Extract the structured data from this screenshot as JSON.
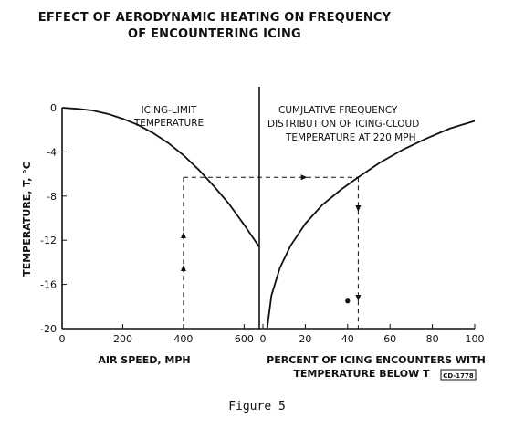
{
  "figure": {
    "title_line1": "EFFECT OF AERODYNAMIC HEATING ON FREQUENCY",
    "title_line2": "OF ENCOUNTERING ICING",
    "caption": "Figure 5",
    "code": "CD-1778"
  },
  "chart_data": [
    {
      "type": "line",
      "panel": "left",
      "annotation": [
        "ICING-LIMIT",
        "TEMPERATURE"
      ],
      "xlabel": "AIR SPEED, MPH",
      "ylabel": "TEMPERATURE, T, °C",
      "xlim": [
        0,
        650
      ],
      "ylim": [
        -20,
        0
      ],
      "xticks": [
        "0",
        "200",
        "400",
        "600"
      ],
      "yticks": [
        "0",
        "-4",
        "-8",
        "-12",
        "-16",
        "-20"
      ],
      "series": [
        {
          "x": [
            0,
            50,
            100,
            150,
            200,
            250,
            300,
            350,
            400,
            450,
            500,
            550,
            600,
            650
          ],
          "y": [
            0.0,
            -0.1,
            -0.25,
            -0.55,
            -1.0,
            -1.55,
            -2.3,
            -3.2,
            -4.3,
            -5.6,
            -7.1,
            -8.7,
            -10.6,
            -12.6
          ]
        }
      ],
      "guides": {
        "x": 400,
        "y": -6.3
      }
    },
    {
      "type": "line",
      "panel": "right",
      "annotation": [
        "CUMJLATIVE FREQUENCY",
        "DISTRIBUTION OF ICING-CLOUD",
        "TEMPERATURE AT 220 MPH"
      ],
      "xlabel": [
        "PERCENT OF ICING ENCOUNTERS WITH",
        "TEMPERATURE BELOW T"
      ],
      "xlim": [
        0,
        100
      ],
      "ylim": [
        -20,
        0
      ],
      "xticks": [
        "0",
        "20",
        "40",
        "60",
        "80",
        "100"
      ],
      "series": [
        {
          "x": [
            2,
            4,
            8,
            13,
            20,
            28,
            37,
            45,
            55,
            66,
            77,
            88,
            100
          ],
          "y": [
            -20.0,
            -17.0,
            -14.5,
            -12.5,
            -10.5,
            -8.8,
            -7.4,
            -6.3,
            -5.0,
            -3.8,
            -2.8,
            -1.9,
            -1.2
          ]
        }
      ],
      "guides": {
        "x": 45,
        "y": -6.3
      },
      "points": [
        {
          "x": 40,
          "y": -17.5
        }
      ]
    }
  ]
}
